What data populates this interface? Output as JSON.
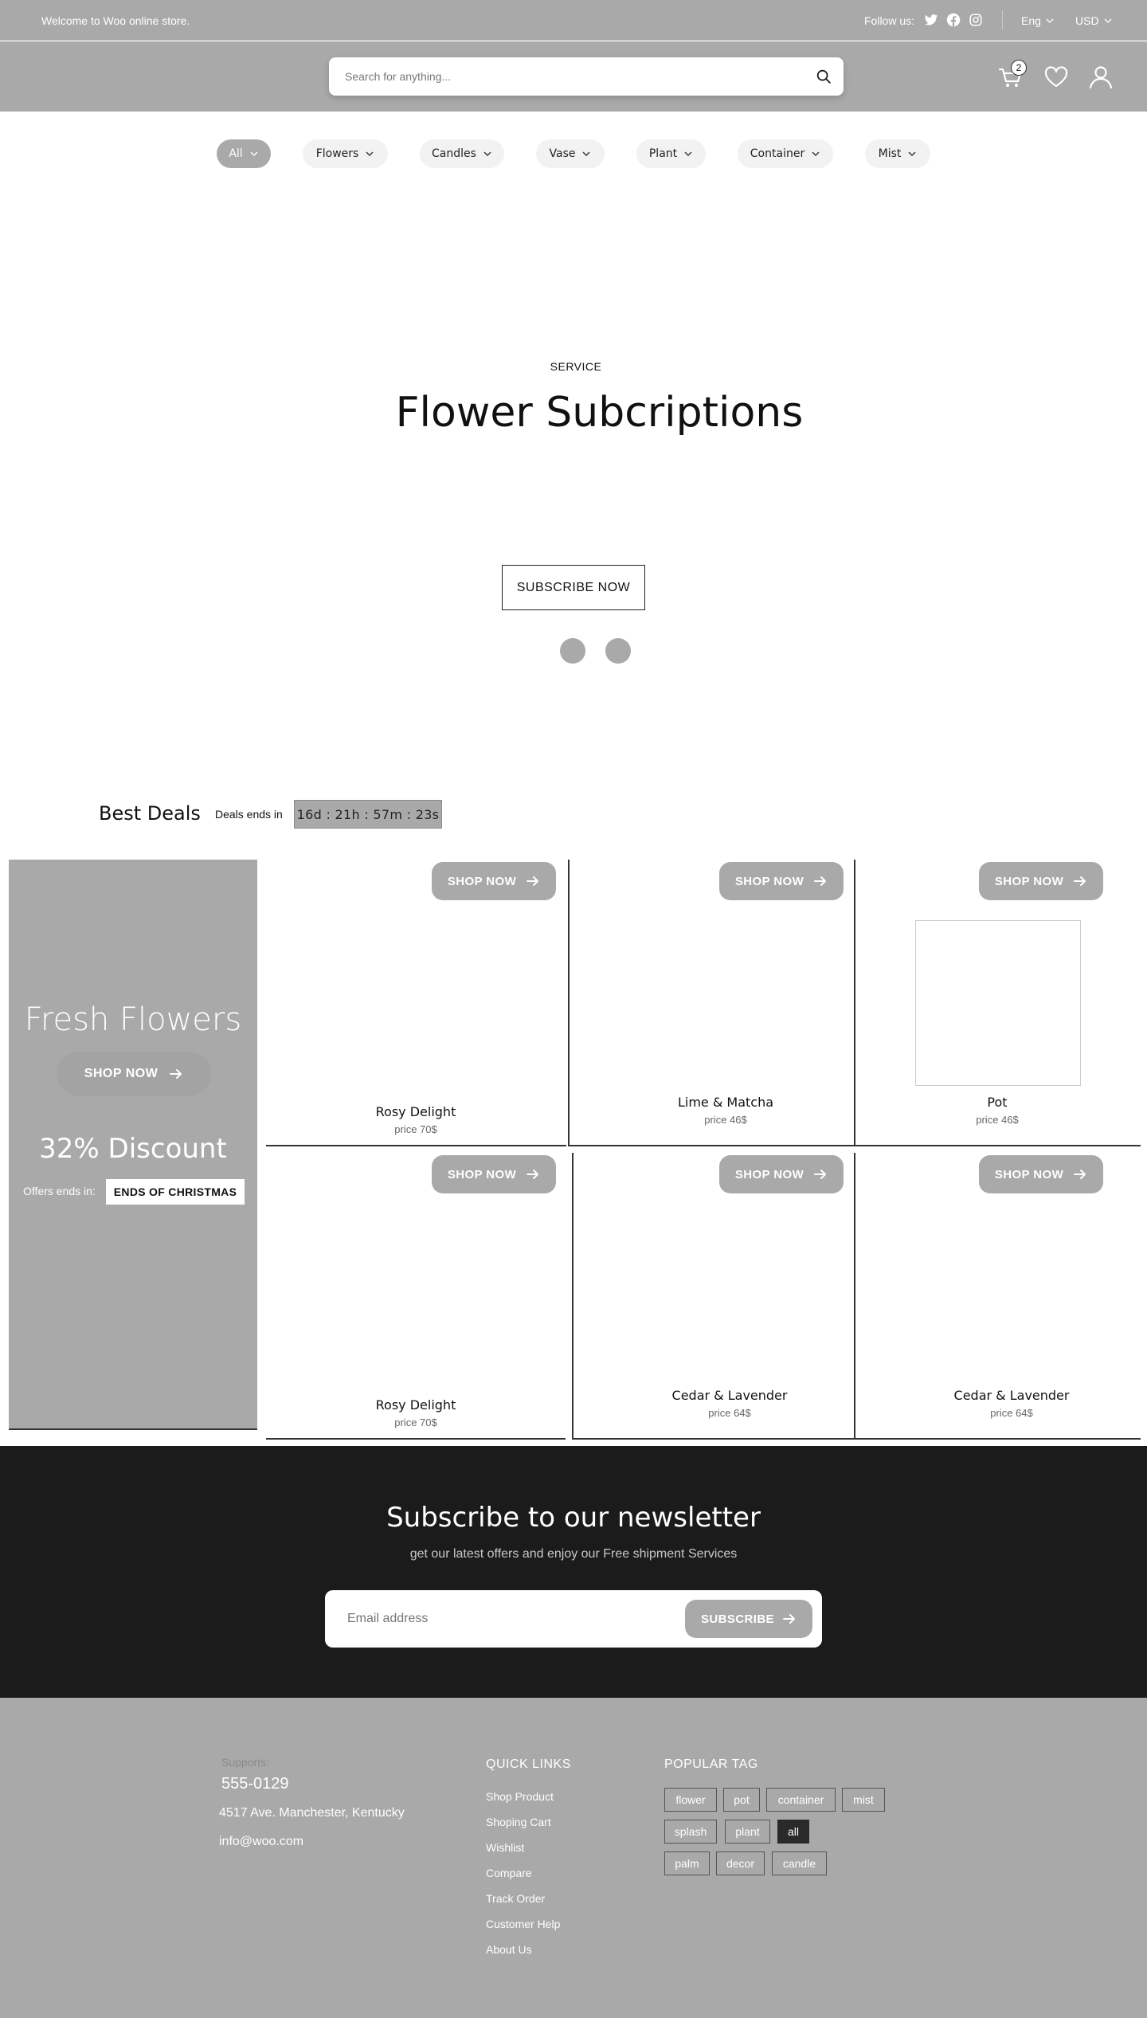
{
  "topbar": {
    "welcome": "Welcome to Woo online  store.",
    "follow": "Follow us:",
    "social_icons": [
      "twitter-icon",
      "facebook-icon",
      "instagram-icon"
    ],
    "language": "Eng",
    "currency": "USD"
  },
  "header": {
    "search_placeholder": "Search for anything...",
    "cart_count": "2"
  },
  "categories": [
    "All",
    "Flowers",
    "Candles",
    "Vase",
    "Plant",
    "Container",
    "Mist"
  ],
  "hero": {
    "label": "SERVICE",
    "title": "Flower Subcriptions",
    "button": "SUBSCRIBE NOW",
    "slides": 2
  },
  "deals": {
    "title": "Best Deals",
    "ends_label": "Deals ends in",
    "timer": "16d : 21h : 57m : 23s"
  },
  "promo": {
    "title": "Fresh Flowers",
    "shop": "SHOP NOW",
    "discount": "32% Discount",
    "offer_label": "Offers ends in:",
    "offer_badge": "ENDS OF CHRISTMAS"
  },
  "products": [
    {
      "shop": "SHOP NOW",
      "name": "Rosy Delight",
      "price": "price 70$"
    },
    {
      "shop": "SHOP NOW",
      "name": "Lime & Matcha",
      "price": "price 46$"
    },
    {
      "shop": "SHOP NOW",
      "name": "Pot",
      "price": "price 46$"
    },
    {
      "shop": "SHOP NOW",
      "name": "Rosy Delight",
      "price": "price 70$"
    },
    {
      "shop": "SHOP NOW",
      "name": "Cedar & Lavender",
      "price": "price 64$"
    },
    {
      "shop": "SHOP NOW",
      "name": "Cedar & Lavender",
      "price": "price 64$"
    }
  ],
  "newsletter": {
    "title": "Subscribe to our newsletter",
    "subtitle": "get our latest offers and enjoy our Free shipment Services",
    "placeholder": "Email address",
    "button": "SUBSCRIBE"
  },
  "footer": {
    "supports": "Supports:",
    "phone": "555-0129",
    "address": "4517  Ave. Manchester, Kentucky",
    "email": "info@woo.com",
    "quick_links_title": "QUICK LINKS",
    "quick_links": [
      "Shop Product",
      "Shoping Cart",
      "Wishlist",
      "Compare",
      "Track Order",
      "Customer Help",
      "About Us"
    ],
    "tags_title": "POPULAR TAG",
    "tags": [
      "flower",
      "pot",
      "container",
      "mist",
      "splash",
      "plant",
      "all",
      "palm",
      "decor",
      "candle"
    ],
    "active_tag": "all"
  }
}
